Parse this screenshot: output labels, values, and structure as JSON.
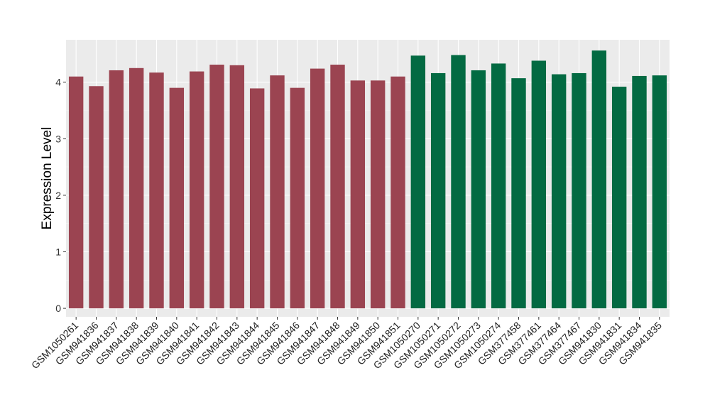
{
  "chart_data": {
    "type": "bar",
    "title": "",
    "xlabel": "",
    "ylabel": "Expression Level",
    "ylim": [
      -0.15,
      4.75
    ],
    "yticks": [
      0,
      1,
      2,
      3,
      4
    ],
    "grid": true,
    "group_colors": [
      "#9b4451",
      "#036a42"
    ],
    "categories": [
      "GSM1050261",
      "GSM941836",
      "GSM941837",
      "GSM941838",
      "GSM941839",
      "GSM941840",
      "GSM941841",
      "GSM941842",
      "GSM941843",
      "GSM941844",
      "GSM941845",
      "GSM941846",
      "GSM941847",
      "GSM941848",
      "GSM941849",
      "GSM941850",
      "GSM941851",
      "GSM1050270",
      "GSM1050271",
      "GSM1050272",
      "GSM1050273",
      "GSM1050274",
      "GSM377458",
      "GSM377461",
      "GSM377464",
      "GSM377467",
      "GSM941830",
      "GSM941831",
      "GSM941834",
      "GSM941835"
    ],
    "values": [
      4.1,
      3.93,
      4.21,
      4.25,
      4.17,
      3.9,
      4.19,
      4.31,
      4.3,
      3.89,
      4.12,
      3.9,
      4.24,
      4.31,
      4.03,
      4.03,
      4.1,
      4.47,
      4.16,
      4.48,
      4.21,
      4.33,
      4.07,
      4.38,
      4.14,
      4.16,
      4.56,
      3.92,
      4.11,
      4.12
    ],
    "groups": [
      0,
      0,
      0,
      0,
      0,
      0,
      0,
      0,
      0,
      0,
      0,
      0,
      0,
      0,
      0,
      0,
      0,
      1,
      1,
      1,
      1,
      1,
      1,
      1,
      1,
      1,
      1,
      1,
      1,
      1
    ]
  }
}
